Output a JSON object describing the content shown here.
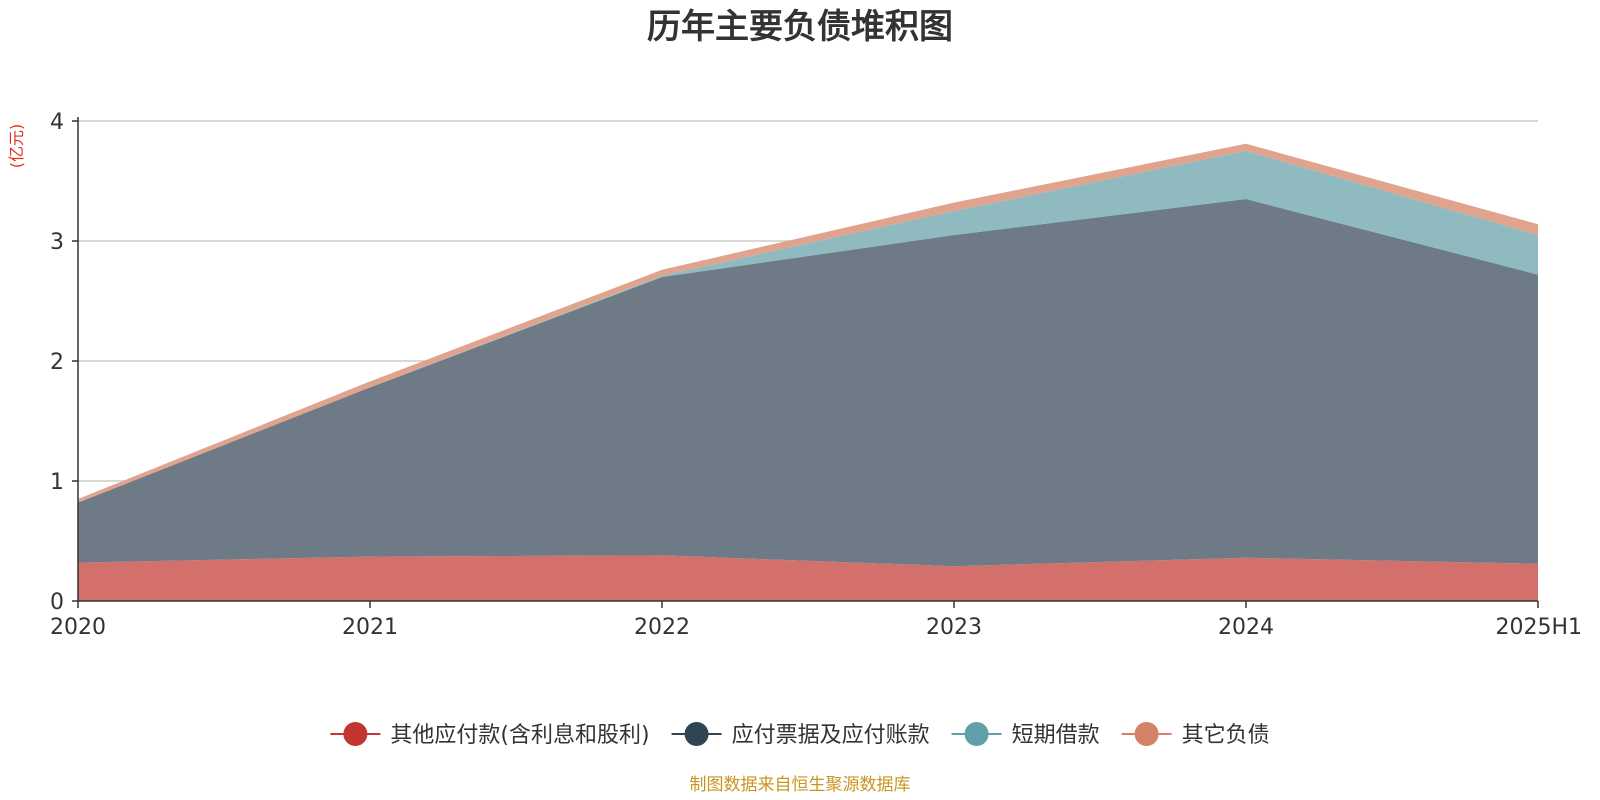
{
  "chart_data": {
    "type": "area",
    "stacked": true,
    "title": "历年主要负债堆积图",
    "unit_label": "(亿元)",
    "categories": [
      "2020",
      "2021",
      "2022",
      "2023",
      "2024",
      "2025H1"
    ],
    "ylim": [
      0,
      4
    ],
    "yticks": [
      "0",
      "1",
      "2",
      "3",
      "4"
    ],
    "grid": true,
    "legend_position": "bottom",
    "series": [
      {
        "name": "其他应付款(含利息和股利)",
        "values": [
          0.32,
          0.37,
          0.38,
          0.29,
          0.36,
          0.31
        ],
        "color": "#c23531",
        "fill": "#d4706c"
      },
      {
        "name": "应付票据及应付账款",
        "values": [
          0.5,
          1.41,
          2.32,
          2.76,
          2.99,
          2.41
        ],
        "color": "#2f4554",
        "fill": "#6e7b86"
      },
      {
        "name": "短期借款",
        "values": [
          0.0,
          0.0,
          0.01,
          0.2,
          0.4,
          0.33
        ],
        "color": "#61a0a8",
        "fill": "#8fbac0"
      },
      {
        "name": "其它负债",
        "values": [
          0.03,
          0.05,
          0.05,
          0.07,
          0.06,
          0.09
        ],
        "color": "#d48265",
        "fill": "#dfa38e"
      }
    ],
    "source": "制图数据来自恒生聚源数据库"
  }
}
